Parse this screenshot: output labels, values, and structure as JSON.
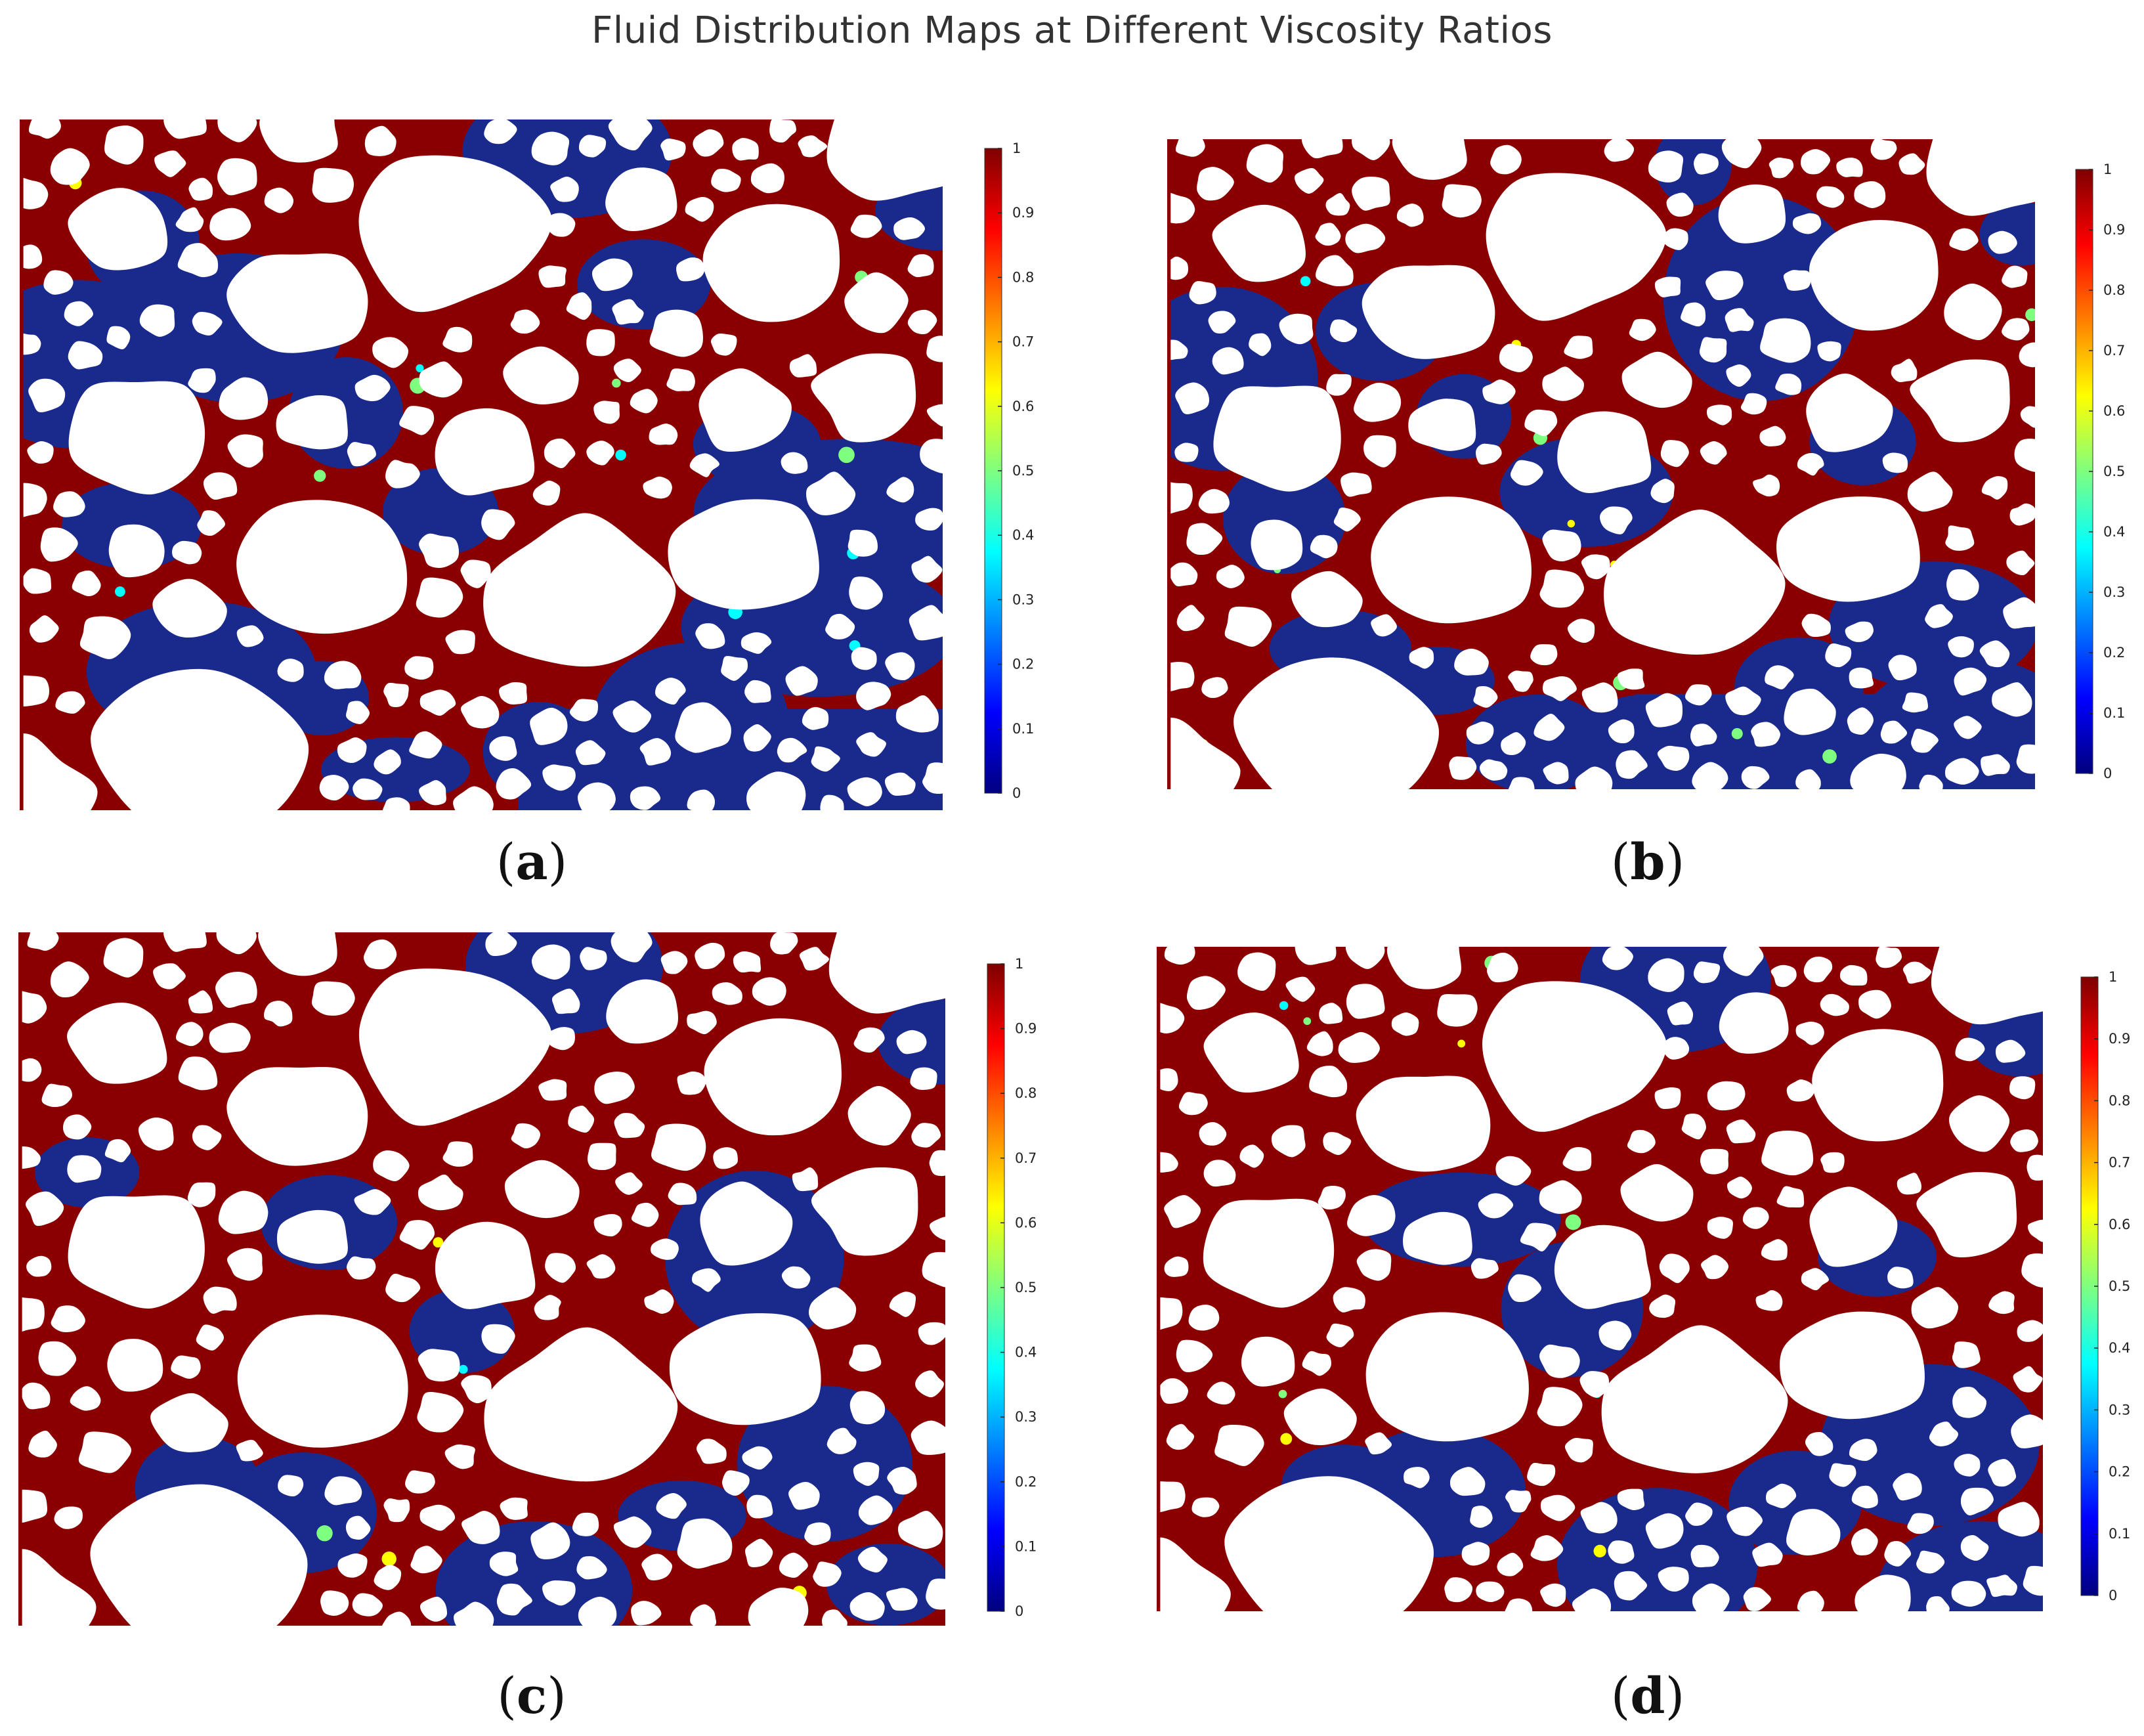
{
  "title": "Fluid Distribution Maps at Different Viscosity Ratios",
  "colormap": {
    "name": "jet",
    "stops": [
      "#00007f",
      "#0000ff",
      "#007fff",
      "#00ffff",
      "#7fff7f",
      "#ffff00",
      "#ff7f00",
      "#ff0000",
      "#7f0000"
    ],
    "tick_labels": [
      "0",
      "0.1",
      "0.2",
      "0.3",
      "0.4",
      "0.5",
      "0.6",
      "0.7",
      "0.8",
      "0.9",
      "1"
    ]
  },
  "colors": {
    "high_phase": "#8a0000",
    "low_phase": "#1a2a8c",
    "grain": "#ffffff"
  },
  "chart_data": [
    {
      "type": "heatmap",
      "panel_label": "(a)",
      "colorbar_range": [
        0,
        1
      ],
      "colorbar_ticks": [
        0,
        0.1,
        0.2,
        0.3,
        0.4,
        0.5,
        0.6,
        0.7,
        0.8,
        0.9,
        1
      ],
      "colormap": "jet",
      "description_of_values": "phase field: 1 = dark red fluid, 0 = dark blue fluid, white = solid grains"
    },
    {
      "type": "heatmap",
      "panel_label": "(b)",
      "colorbar_range": [
        0,
        1
      ],
      "colorbar_ticks": [
        0,
        0.1,
        0.2,
        0.3,
        0.4,
        0.5,
        0.6,
        0.7,
        0.8,
        0.9,
        1
      ],
      "colormap": "jet"
    },
    {
      "type": "heatmap",
      "panel_label": "(c)",
      "colorbar_range": [
        0,
        1
      ],
      "colorbar_ticks": [
        0,
        0.1,
        0.2,
        0.3,
        0.4,
        0.5,
        0.6,
        0.7,
        0.8,
        0.9,
        1
      ],
      "colormap": "jet"
    },
    {
      "type": "heatmap",
      "panel_label": "(d)",
      "colorbar_range": [
        0,
        1
      ],
      "colorbar_ticks": [
        0,
        0.1,
        0.2,
        0.3,
        0.4,
        0.5,
        0.6,
        0.7,
        0.8,
        0.9,
        1
      ],
      "colormap": "jet"
    }
  ],
  "panels": [
    {
      "label_letter": "a",
      "blue_fraction": 0.32,
      "seed": 11
    },
    {
      "label_letter": "b",
      "blue_fraction": 0.27,
      "seed": 23
    },
    {
      "label_letter": "c",
      "blue_fraction": 0.17,
      "seed": 37
    },
    {
      "label_letter": "d",
      "blue_fraction": 0.13,
      "seed": 51
    }
  ]
}
